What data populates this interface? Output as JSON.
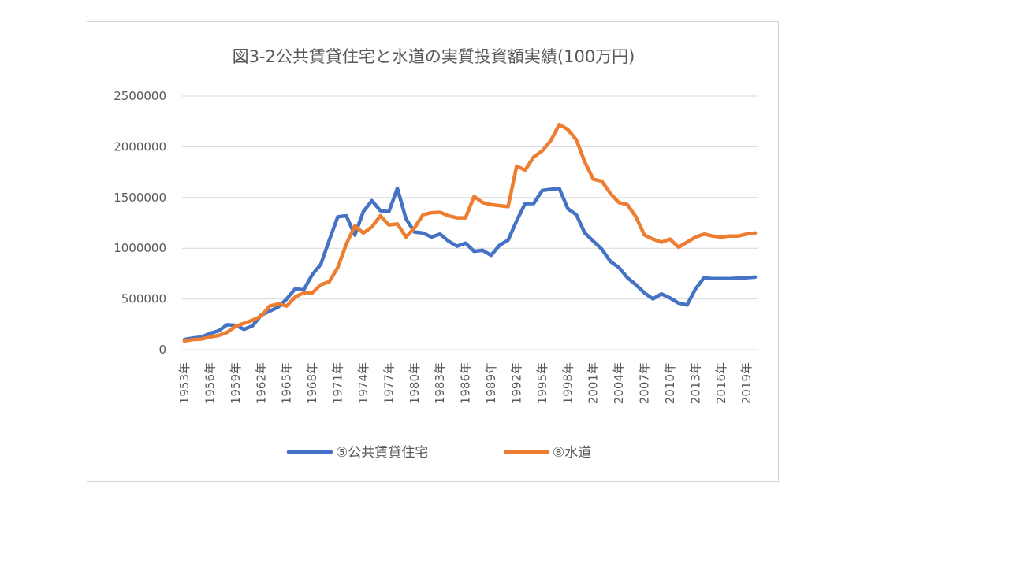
{
  "chart_data": {
    "type": "line",
    "title": "図3-2公共賃貸住宅と水道の実質投資額実績(100万円)",
    "xlabel": "",
    "ylabel": "",
    "ylim": [
      0,
      2500000
    ],
    "y_ticks": [
      "0",
      "500000",
      "1000000",
      "1500000",
      "2000000",
      "2500000"
    ],
    "x_tick_labels": [
      "1953年",
      "1956年",
      "1959年",
      "1962年",
      "1965年",
      "1968年",
      "1971年",
      "1974年",
      "1977年",
      "1980年",
      "1983年",
      "1986年",
      "1989年",
      "1992年",
      "1995年",
      "1998年",
      "2001年",
      "2004年",
      "2007年",
      "2010年",
      "2013年",
      "2016年",
      "2019年"
    ],
    "grid": true,
    "legend_position": "bottom",
    "x": [
      1953,
      1954,
      1955,
      1956,
      1957,
      1958,
      1959,
      1960,
      1961,
      1962,
      1963,
      1964,
      1965,
      1966,
      1967,
      1968,
      1969,
      1970,
      1971,
      1972,
      1973,
      1974,
      1975,
      1976,
      1977,
      1978,
      1979,
      1980,
      1981,
      1982,
      1983,
      1984,
      1985,
      1986,
      1987,
      1988,
      1989,
      1990,
      1991,
      1992,
      1993,
      1994,
      1995,
      1996,
      1997,
      1998,
      1999,
      2000,
      2001,
      2002,
      2003,
      2004,
      2005,
      2006,
      2007,
      2008,
      2009,
      2010,
      2011,
      2012,
      2013,
      2014,
      2015,
      2016,
      2017,
      2018,
      2019,
      2020
    ],
    "series": [
      {
        "name": "⑤公共賃貸住宅",
        "color": "#4472c4",
        "values": [
          100000,
          115000,
          125000,
          160000,
          185000,
          245000,
          240000,
          200000,
          235000,
          340000,
          380000,
          420000,
          500000,
          600000,
          590000,
          740000,
          840000,
          1080000,
          1310000,
          1320000,
          1130000,
          1360000,
          1470000,
          1370000,
          1360000,
          1590000,
          1290000,
          1160000,
          1150000,
          1110000,
          1140000,
          1070000,
          1020000,
          1050000,
          970000,
          980000,
          930000,
          1030000,
          1080000,
          1270000,
          1440000,
          1440000,
          1570000,
          1580000,
          1590000,
          1390000,
          1330000,
          1150000,
          1070000,
          990000,
          870000,
          810000,
          710000,
          640000,
          560000,
          500000,
          550000,
          510000,
          460000,
          440000,
          600000,
          710000,
          700000,
          700000,
          700000,
          705000,
          710000,
          715000
        ]
      },
      {
        "name": "⑧水道",
        "color": "#ed7d31",
        "values": [
          85000,
          100000,
          105000,
          125000,
          140000,
          170000,
          230000,
          260000,
          290000,
          330000,
          430000,
          450000,
          430000,
          520000,
          560000,
          560000,
          640000,
          670000,
          810000,
          1040000,
          1220000,
          1150000,
          1210000,
          1320000,
          1230000,
          1240000,
          1110000,
          1200000,
          1330000,
          1350000,
          1355000,
          1320000,
          1300000,
          1300000,
          1510000,
          1450000,
          1430000,
          1420000,
          1410000,
          1810000,
          1770000,
          1900000,
          1960000,
          2060000,
          2220000,
          2170000,
          2070000,
          1850000,
          1680000,
          1660000,
          1540000,
          1450000,
          1430000,
          1310000,
          1130000,
          1090000,
          1060000,
          1090000,
          1010000,
          1060000,
          1110000,
          1140000,
          1120000,
          1110000,
          1120000,
          1120000,
          1140000,
          1150000
        ]
      }
    ]
  }
}
